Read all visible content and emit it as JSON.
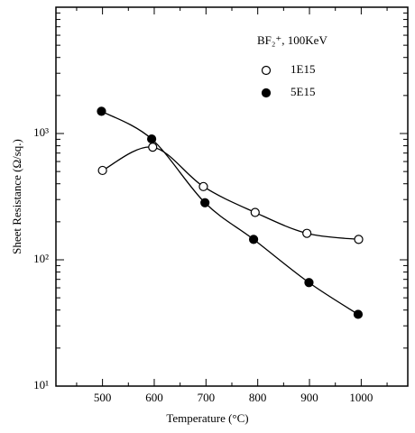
{
  "chart_data": {
    "type": "scatter",
    "xlabel": "Temperature (°C)",
    "ylabel": "Sheet Resistance (Ω/sq.)",
    "legend_title": "BF₂⁺, 100KeV",
    "xlim": [
      410,
      1090
    ],
    "xticks": [
      500,
      600,
      700,
      800,
      900,
      1000
    ],
    "ylim": [
      10,
      10000
    ],
    "log_y": true,
    "yticks": [
      {
        "value": 10,
        "label": "10¹"
      },
      {
        "value": 100,
        "label": "10²"
      },
      {
        "value": 1000,
        "label": "10³"
      }
    ],
    "legend": "upper right",
    "fit_curve": true,
    "series": [
      {
        "name": "1E15",
        "color": "#000",
        "filled": false,
        "x": [
          500,
          597,
          695,
          795,
          895,
          995
        ],
        "values": [
          510,
          780,
          380,
          237,
          162,
          145
        ]
      },
      {
        "name": "5E15",
        "color": "#000",
        "filled": true,
        "x": [
          498,
          595,
          698,
          792,
          899,
          994
        ],
        "values": [
          1500,
          905,
          283,
          145,
          66,
          37
        ]
      }
    ]
  }
}
